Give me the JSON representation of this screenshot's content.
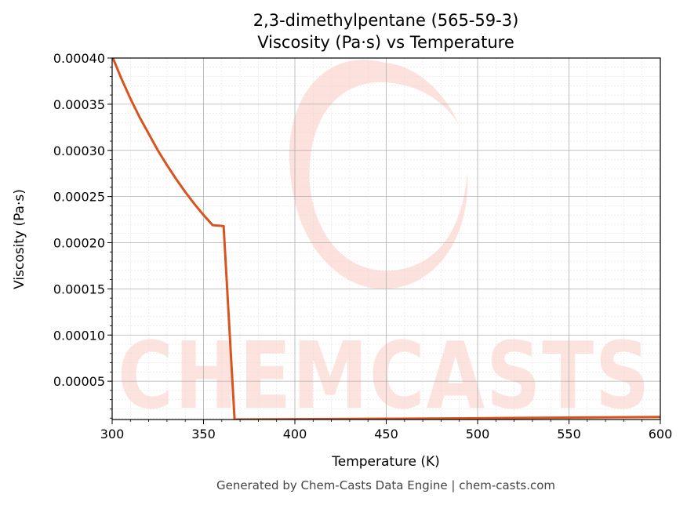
{
  "chart_data": {
    "type": "line",
    "title": "2,3-dimethylpentane (565-59-3)",
    "subtitle": "Viscosity (Pa·s) vs Temperature",
    "xlabel": "Temperature (K)",
    "ylabel": "Viscosity (Pa·s)",
    "xlim": [
      300,
      600
    ],
    "ylim": [
      8.5e-06,
      0.0004
    ],
    "x_ticks": [
      "300",
      "350",
      "400",
      "450",
      "500",
      "550",
      "600"
    ],
    "y_ticks": [
      "0.00005",
      "0.00010",
      "0.00015",
      "0.00020",
      "0.00025",
      "0.00030",
      "0.00035",
      "0.00040"
    ],
    "grid": true,
    "line_color": "#d9531e",
    "series": [
      {
        "x": [
          300,
          305,
          310,
          315,
          320,
          325,
          330,
          335,
          340,
          345,
          350,
          355,
          361,
          367,
          368,
          400,
          450,
          500,
          550,
          600
        ],
        "y": [
          0.000402,
          0.000378,
          0.000356,
          0.000336,
          0.000318,
          0.0003,
          0.000284,
          0.000269,
          0.000255,
          0.000242,
          0.00023,
          0.000219,
          0.000218,
          8.5e-06,
          8.5e-06,
          8.8e-06,
          9.3e-06,
          9.9e-06,
          1.06e-05,
          1.13e-05
        ]
      }
    ]
  },
  "watermark": {
    "text": "CHEMCASTS",
    "color": "#fcc9bf"
  },
  "footer": "Generated by Chem-Casts Data Engine | chem-casts.com"
}
